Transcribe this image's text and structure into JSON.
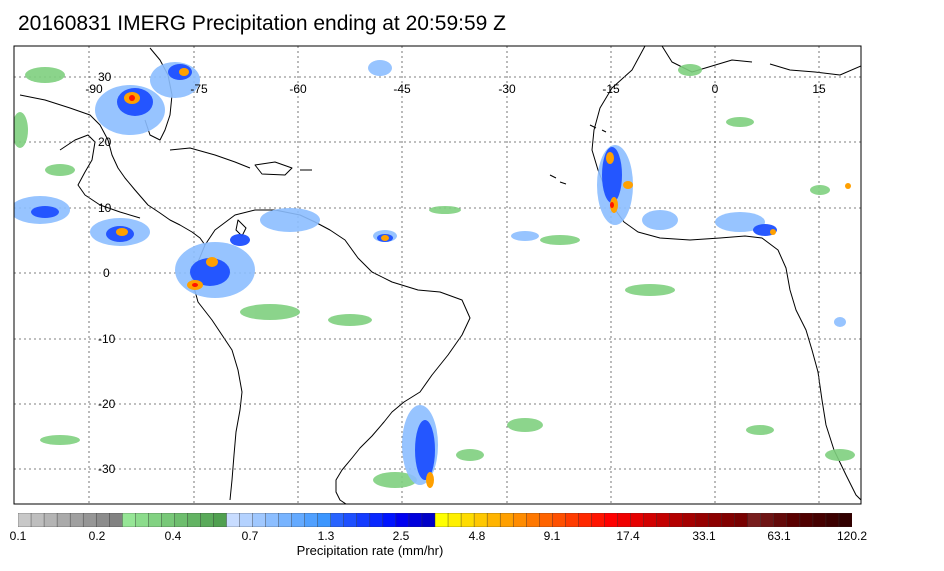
{
  "title": "20160831 IMERG Precipitation ending at 20:59:59 Z",
  "map": {
    "lon_labels": [
      "-90",
      "-75",
      "-60",
      "-45",
      "-30",
      "-15",
      "0",
      "15"
    ],
    "lat_labels": [
      "30",
      "20",
      "10",
      "0",
      "-10",
      "-20",
      "-30"
    ],
    "grid": "dotted"
  },
  "colorbar": {
    "title": "Precipitation rate (mm/hr)",
    "tick_labels": [
      "0.1",
      "0.2",
      "0.4",
      "0.7",
      "1.3",
      "2.5",
      "4.8",
      "9.1",
      "17.4",
      "33.1",
      "63.1",
      "120.2"
    ],
    "colors": [
      "#c8c8c8",
      "#bebebe",
      "#b4b4b4",
      "#aaaaaa",
      "#a0a0a0",
      "#969696",
      "#8c8c8c",
      "#828282",
      "#96e696",
      "#8cdc8c",
      "#82d282",
      "#78c878",
      "#6ebe6e",
      "#64b464",
      "#5aaa5a",
      "#50a050",
      "#c8dcff",
      "#b4d2ff",
      "#a0c8ff",
      "#8cbeff",
      "#78b4ff",
      "#64aaff",
      "#50a0ff",
      "#3c96ff",
      "#2864ff",
      "#1e50ff",
      "#143cff",
      "#0a28ff",
      "#0014ff",
      "#0000f0",
      "#0000dc",
      "#0000c8",
      "#ffff00",
      "#fff000",
      "#ffdc00",
      "#ffc800",
      "#ffb400",
      "#ffa000",
      "#ff8c00",
      "#ff7800",
      "#ff6400",
      "#ff5000",
      "#ff3c00",
      "#ff2800",
      "#ff1400",
      "#ff0000",
      "#f00000",
      "#e60000",
      "#d20000",
      "#c30000",
      "#b40000",
      "#a50000",
      "#960000",
      "#8c0000",
      "#820000",
      "#780000",
      "#781e1e",
      "#6e1414",
      "#640a0a",
      "#5a0000",
      "#500000",
      "#460000",
      "#3c0000",
      "#320000"
    ]
  }
}
